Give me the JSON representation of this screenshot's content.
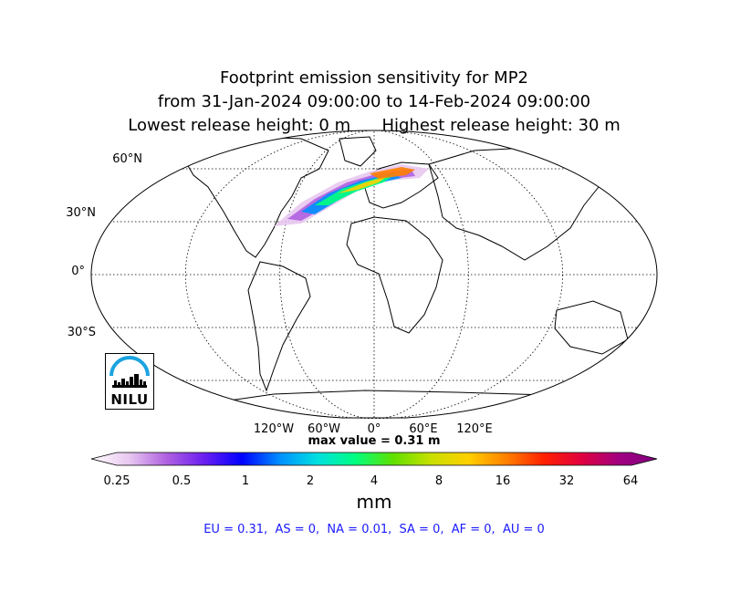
{
  "title": {
    "line1": "Footprint emission sensitivity for MP2",
    "line2": "from 31-Jan-2024 09:00:00 to 14-Feb-2024 09:00:00",
    "line3": "Lowest release height: 0 m      Highest release height: 30 m"
  },
  "map": {
    "projection": "Robinson",
    "lat_labels": [
      "60°N",
      "30°N",
      "0°",
      "30°S"
    ],
    "lon_labels": [
      "120°W",
      "60°W",
      "0°",
      "60°E",
      "120°E"
    ],
    "max_value_text": "max value = 0.31 m"
  },
  "colorbar": {
    "ticks": [
      "0.25",
      "0.5",
      "1",
      "2",
      "4",
      "8",
      "16",
      "32",
      "64"
    ],
    "units": "mm",
    "colors": [
      "#ffffff",
      "#e8c8f0",
      "#b060e0",
      "#6a1ef0",
      "#0000ff",
      "#0090ff",
      "#00e0e0",
      "#00ff80",
      "#60e000",
      "#c8e000",
      "#ffd000",
      "#ff8000",
      "#ff2000",
      "#e00040",
      "#a00080",
      "#800080"
    ]
  },
  "regions_text": "EU = 0.31,  AS = 0,  NA = 0.01,  SA = 0,  AF = 0,  AU = 0",
  "logo": {
    "text": "NILU"
  }
}
